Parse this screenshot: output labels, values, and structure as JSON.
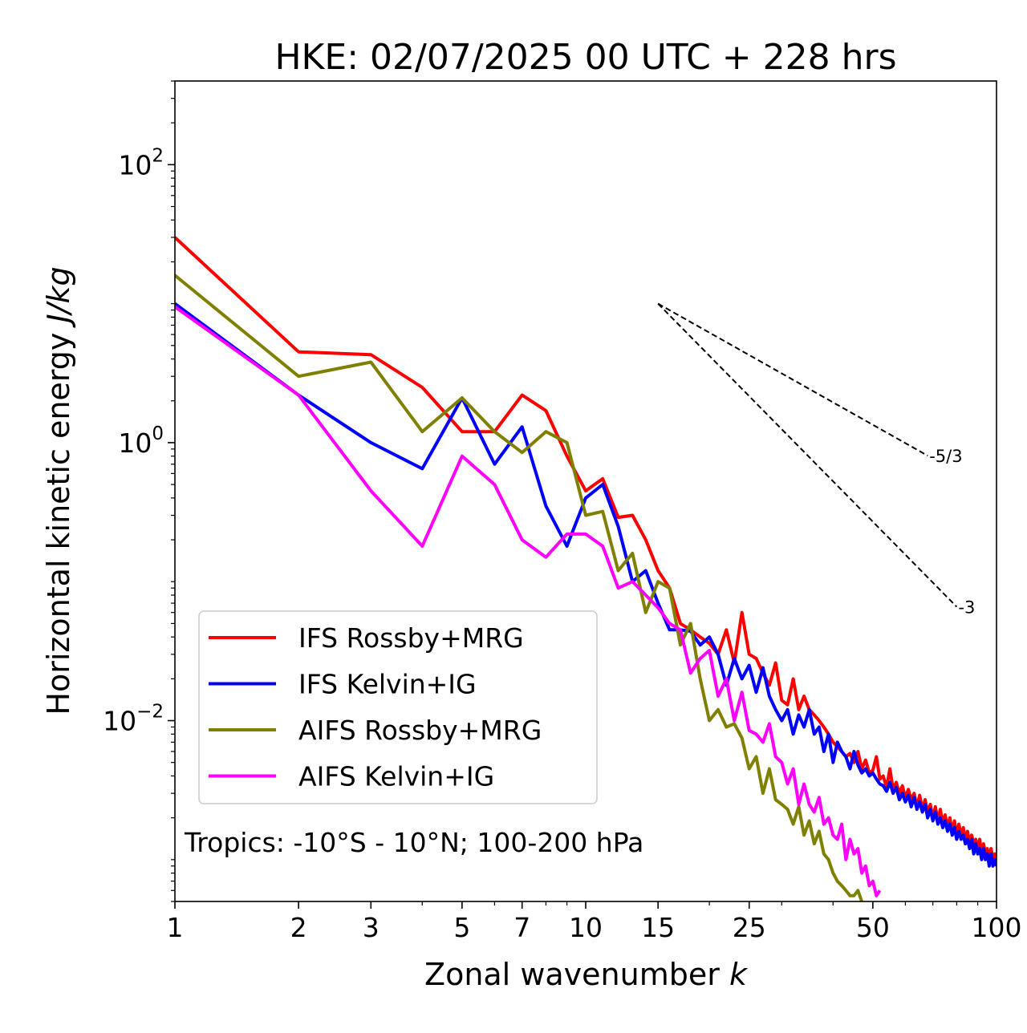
{
  "chart_data": {
    "type": "line",
    "title": "HKE: 02/07/2025 00 UTC + 228 hrs",
    "xlabel": "Zonal wavenumber",
    "xlabel_italic": "k",
    "ylabel": "Horizontal kinetic energy",
    "ylabel_italic": "J/kg",
    "xscale": "log",
    "yscale": "log",
    "xlim": [
      1,
      100
    ],
    "ylim": [
      0.0005,
      400
    ],
    "x_ticks": [
      1,
      2,
      3,
      5,
      7,
      10,
      15,
      25,
      50,
      100
    ],
    "x_tick_labels": [
      "1",
      "2",
      "3",
      "5",
      "7",
      "10",
      "15",
      "25",
      "50",
      "100"
    ],
    "y_ticks": [
      {
        "value": 0.01,
        "base": "10",
        "exp": "−2"
      },
      {
        "value": 1,
        "base": "10",
        "exp": "0"
      },
      {
        "value": 100,
        "base": "10",
        "exp": "2"
      }
    ],
    "legend_position": "lower-left",
    "annotation": "Tropics: -10°S - 10°N; 100-200 hPa",
    "reference_lines": [
      {
        "label": "-5/3",
        "slope": -1.6667,
        "x_start": 15,
        "x_end": 68,
        "y_start": 10
      },
      {
        "label": "-3",
        "slope": -3,
        "x_start": 15,
        "x_end": 80,
        "y_start": 10
      }
    ],
    "series": [
      {
        "name": "IFS Rossby+MRG",
        "color": "#ff0000",
        "x": [
          1,
          2,
          3,
          4,
          5,
          6,
          7,
          8,
          9,
          10,
          11,
          12,
          13,
          14,
          15,
          16,
          17,
          18,
          19,
          20,
          21,
          22,
          23,
          24,
          25,
          26,
          27,
          28,
          29,
          30,
          31,
          32,
          33,
          34,
          35,
          36,
          37,
          38,
          39,
          40,
          41,
          42,
          43,
          44,
          45,
          46,
          47,
          48,
          49,
          50,
          51,
          52,
          53,
          54,
          55,
          56,
          57,
          58,
          59,
          60,
          61,
          62,
          63,
          64,
          65,
          66,
          67,
          68,
          69,
          70,
          71,
          72,
          73,
          74,
          75,
          76,
          77,
          78,
          79,
          80,
          81,
          82,
          83,
          84,
          85,
          86,
          87,
          88,
          89,
          90,
          91,
          92,
          93,
          94,
          95,
          96,
          97,
          98,
          99,
          100
        ],
        "y": [
          30,
          4.5,
          4.3,
          2.5,
          1.2,
          1.2,
          2.2,
          1.7,
          0.8,
          0.45,
          0.55,
          0.29,
          0.3,
          0.2,
          0.12,
          0.09,
          0.05,
          0.045,
          0.04,
          0.036,
          0.03,
          0.045,
          0.026,
          0.06,
          0.03,
          0.028,
          0.022,
          0.018,
          0.026,
          0.014,
          0.013,
          0.02,
          0.012,
          0.015,
          0.012,
          0.011,
          0.01,
          0.009,
          0.008,
          0.007,
          0.0065,
          0.006,
          0.0055,
          0.0058,
          0.005,
          0.006,
          0.0045,
          0.0052,
          0.0042,
          0.0044,
          0.0055,
          0.0038,
          0.004,
          0.0033,
          0.0045,
          0.0032,
          0.0036,
          0.003,
          0.0034,
          0.0028,
          0.0032,
          0.0027,
          0.003,
          0.0024,
          0.0029,
          0.0023,
          0.0027,
          0.0022,
          0.0025,
          0.002,
          0.0024,
          0.0019,
          0.0023,
          0.0018,
          0.0021,
          0.0017,
          0.002,
          0.0016,
          0.0019,
          0.0015,
          0.0018,
          0.0015,
          0.0017,
          0.0014,
          0.0016,
          0.0013,
          0.0015,
          0.0013,
          0.0014,
          0.0012,
          0.0014,
          0.0011,
          0.0013,
          0.0011,
          0.0012,
          0.001,
          0.0012,
          0.001,
          0.0011,
          0.001
        ]
      },
      {
        "name": "IFS Kelvin+IG",
        "color": "#0000ff",
        "x": [
          1,
          2,
          3,
          4,
          5,
          6,
          7,
          8,
          9,
          10,
          11,
          12,
          13,
          14,
          15,
          16,
          17,
          18,
          19,
          20,
          21,
          22,
          23,
          24,
          25,
          26,
          27,
          28,
          29,
          30,
          31,
          32,
          33,
          34,
          35,
          36,
          37,
          38,
          39,
          40,
          41,
          42,
          43,
          44,
          45,
          46,
          47,
          48,
          49,
          50,
          51,
          52,
          53,
          54,
          55,
          56,
          57,
          58,
          59,
          60,
          61,
          62,
          63,
          64,
          65,
          66,
          67,
          68,
          69,
          70,
          71,
          72,
          73,
          74,
          75,
          76,
          77,
          78,
          79,
          80,
          81,
          82,
          83,
          84,
          85,
          86,
          87,
          88,
          89,
          90,
          91,
          92,
          93,
          94,
          95,
          96,
          97,
          98,
          99,
          100
        ],
        "y": [
          10,
          2.2,
          1.0,
          0.65,
          2.1,
          0.7,
          1.3,
          0.35,
          0.18,
          0.4,
          0.5,
          0.25,
          0.1,
          0.12,
          0.07,
          0.045,
          0.045,
          0.044,
          0.035,
          0.04,
          0.03,
          0.018,
          0.028,
          0.02,
          0.025,
          0.016,
          0.024,
          0.015,
          0.012,
          0.01,
          0.012,
          0.008,
          0.011,
          0.009,
          0.012,
          0.008,
          0.009,
          0.006,
          0.008,
          0.005,
          0.007,
          0.006,
          0.0055,
          0.0045,
          0.006,
          0.0048,
          0.0042,
          0.0045,
          0.004,
          0.0042,
          0.0038,
          0.0035,
          0.0034,
          0.0031,
          0.0036,
          0.003,
          0.0033,
          0.0027,
          0.003,
          0.0026,
          0.0029,
          0.0024,
          0.0028,
          0.0023,
          0.0026,
          0.0022,
          0.0025,
          0.002,
          0.0023,
          0.0019,
          0.0022,
          0.0018,
          0.002,
          0.0017,
          0.0019,
          0.0016,
          0.0018,
          0.0015,
          0.0017,
          0.0014,
          0.0016,
          0.0014,
          0.0015,
          0.0013,
          0.0014,
          0.0012,
          0.0014,
          0.0011,
          0.0013,
          0.0011,
          0.0012,
          0.001,
          0.0012,
          0.001,
          0.0011,
          0.0009,
          0.0011,
          0.0009,
          0.001,
          0.0009
        ]
      },
      {
        "name": "AIFS Rossby+MRG",
        "color": "#808000",
        "x": [
          1,
          2,
          3,
          4,
          5,
          6,
          7,
          8,
          9,
          10,
          11,
          12,
          13,
          14,
          15,
          16,
          17,
          18,
          19,
          20,
          21,
          22,
          23,
          24,
          25,
          26,
          27,
          28,
          29,
          30,
          31,
          32,
          33,
          34,
          35,
          36,
          37,
          38,
          39,
          40,
          41,
          42,
          43,
          44,
          45,
          46,
          47
        ],
        "y": [
          16,
          3.0,
          3.8,
          1.2,
          2.1,
          1.2,
          0.85,
          1.2,
          1.0,
          0.3,
          0.32,
          0.12,
          0.16,
          0.06,
          0.1,
          0.09,
          0.035,
          0.05,
          0.02,
          0.01,
          0.012,
          0.009,
          0.0095,
          0.0075,
          0.0045,
          0.0055,
          0.003,
          0.0045,
          0.0027,
          0.0025,
          0.0023,
          0.0018,
          0.0024,
          0.0015,
          0.0019,
          0.0013,
          0.0016,
          0.0011,
          0.001,
          0.0008,
          0.0007,
          0.00065,
          0.0006,
          0.00055,
          0.00055,
          0.0006,
          0.0005
        ]
      },
      {
        "name": "AIFS Kelvin+IG",
        "color": "#ff00ff",
        "x": [
          1,
          2,
          3,
          4,
          5,
          6,
          7,
          8,
          9,
          10,
          11,
          12,
          13,
          14,
          15,
          16,
          17,
          18,
          19,
          20,
          21,
          22,
          23,
          24,
          25,
          26,
          27,
          28,
          29,
          30,
          31,
          32,
          33,
          34,
          35,
          36,
          37,
          38,
          39,
          40,
          41,
          42,
          43,
          44,
          45,
          46,
          47,
          48,
          49,
          50,
          51,
          52
        ],
        "y": [
          9.5,
          2.2,
          0.45,
          0.18,
          0.8,
          0.5,
          0.2,
          0.15,
          0.22,
          0.22,
          0.18,
          0.09,
          0.1,
          0.08,
          0.065,
          0.05,
          0.045,
          0.022,
          0.028,
          0.032,
          0.015,
          0.02,
          0.01,
          0.016,
          0.0085,
          0.008,
          0.007,
          0.0095,
          0.0055,
          0.005,
          0.0035,
          0.0045,
          0.0025,
          0.0035,
          0.0025,
          0.0022,
          0.0028,
          0.0018,
          0.002,
          0.0015,
          0.0014,
          0.0018,
          0.001,
          0.0014,
          0.0011,
          0.0012,
          0.0008,
          0.0009,
          0.00065,
          0.0007,
          0.00055,
          0.0006
        ]
      }
    ]
  }
}
